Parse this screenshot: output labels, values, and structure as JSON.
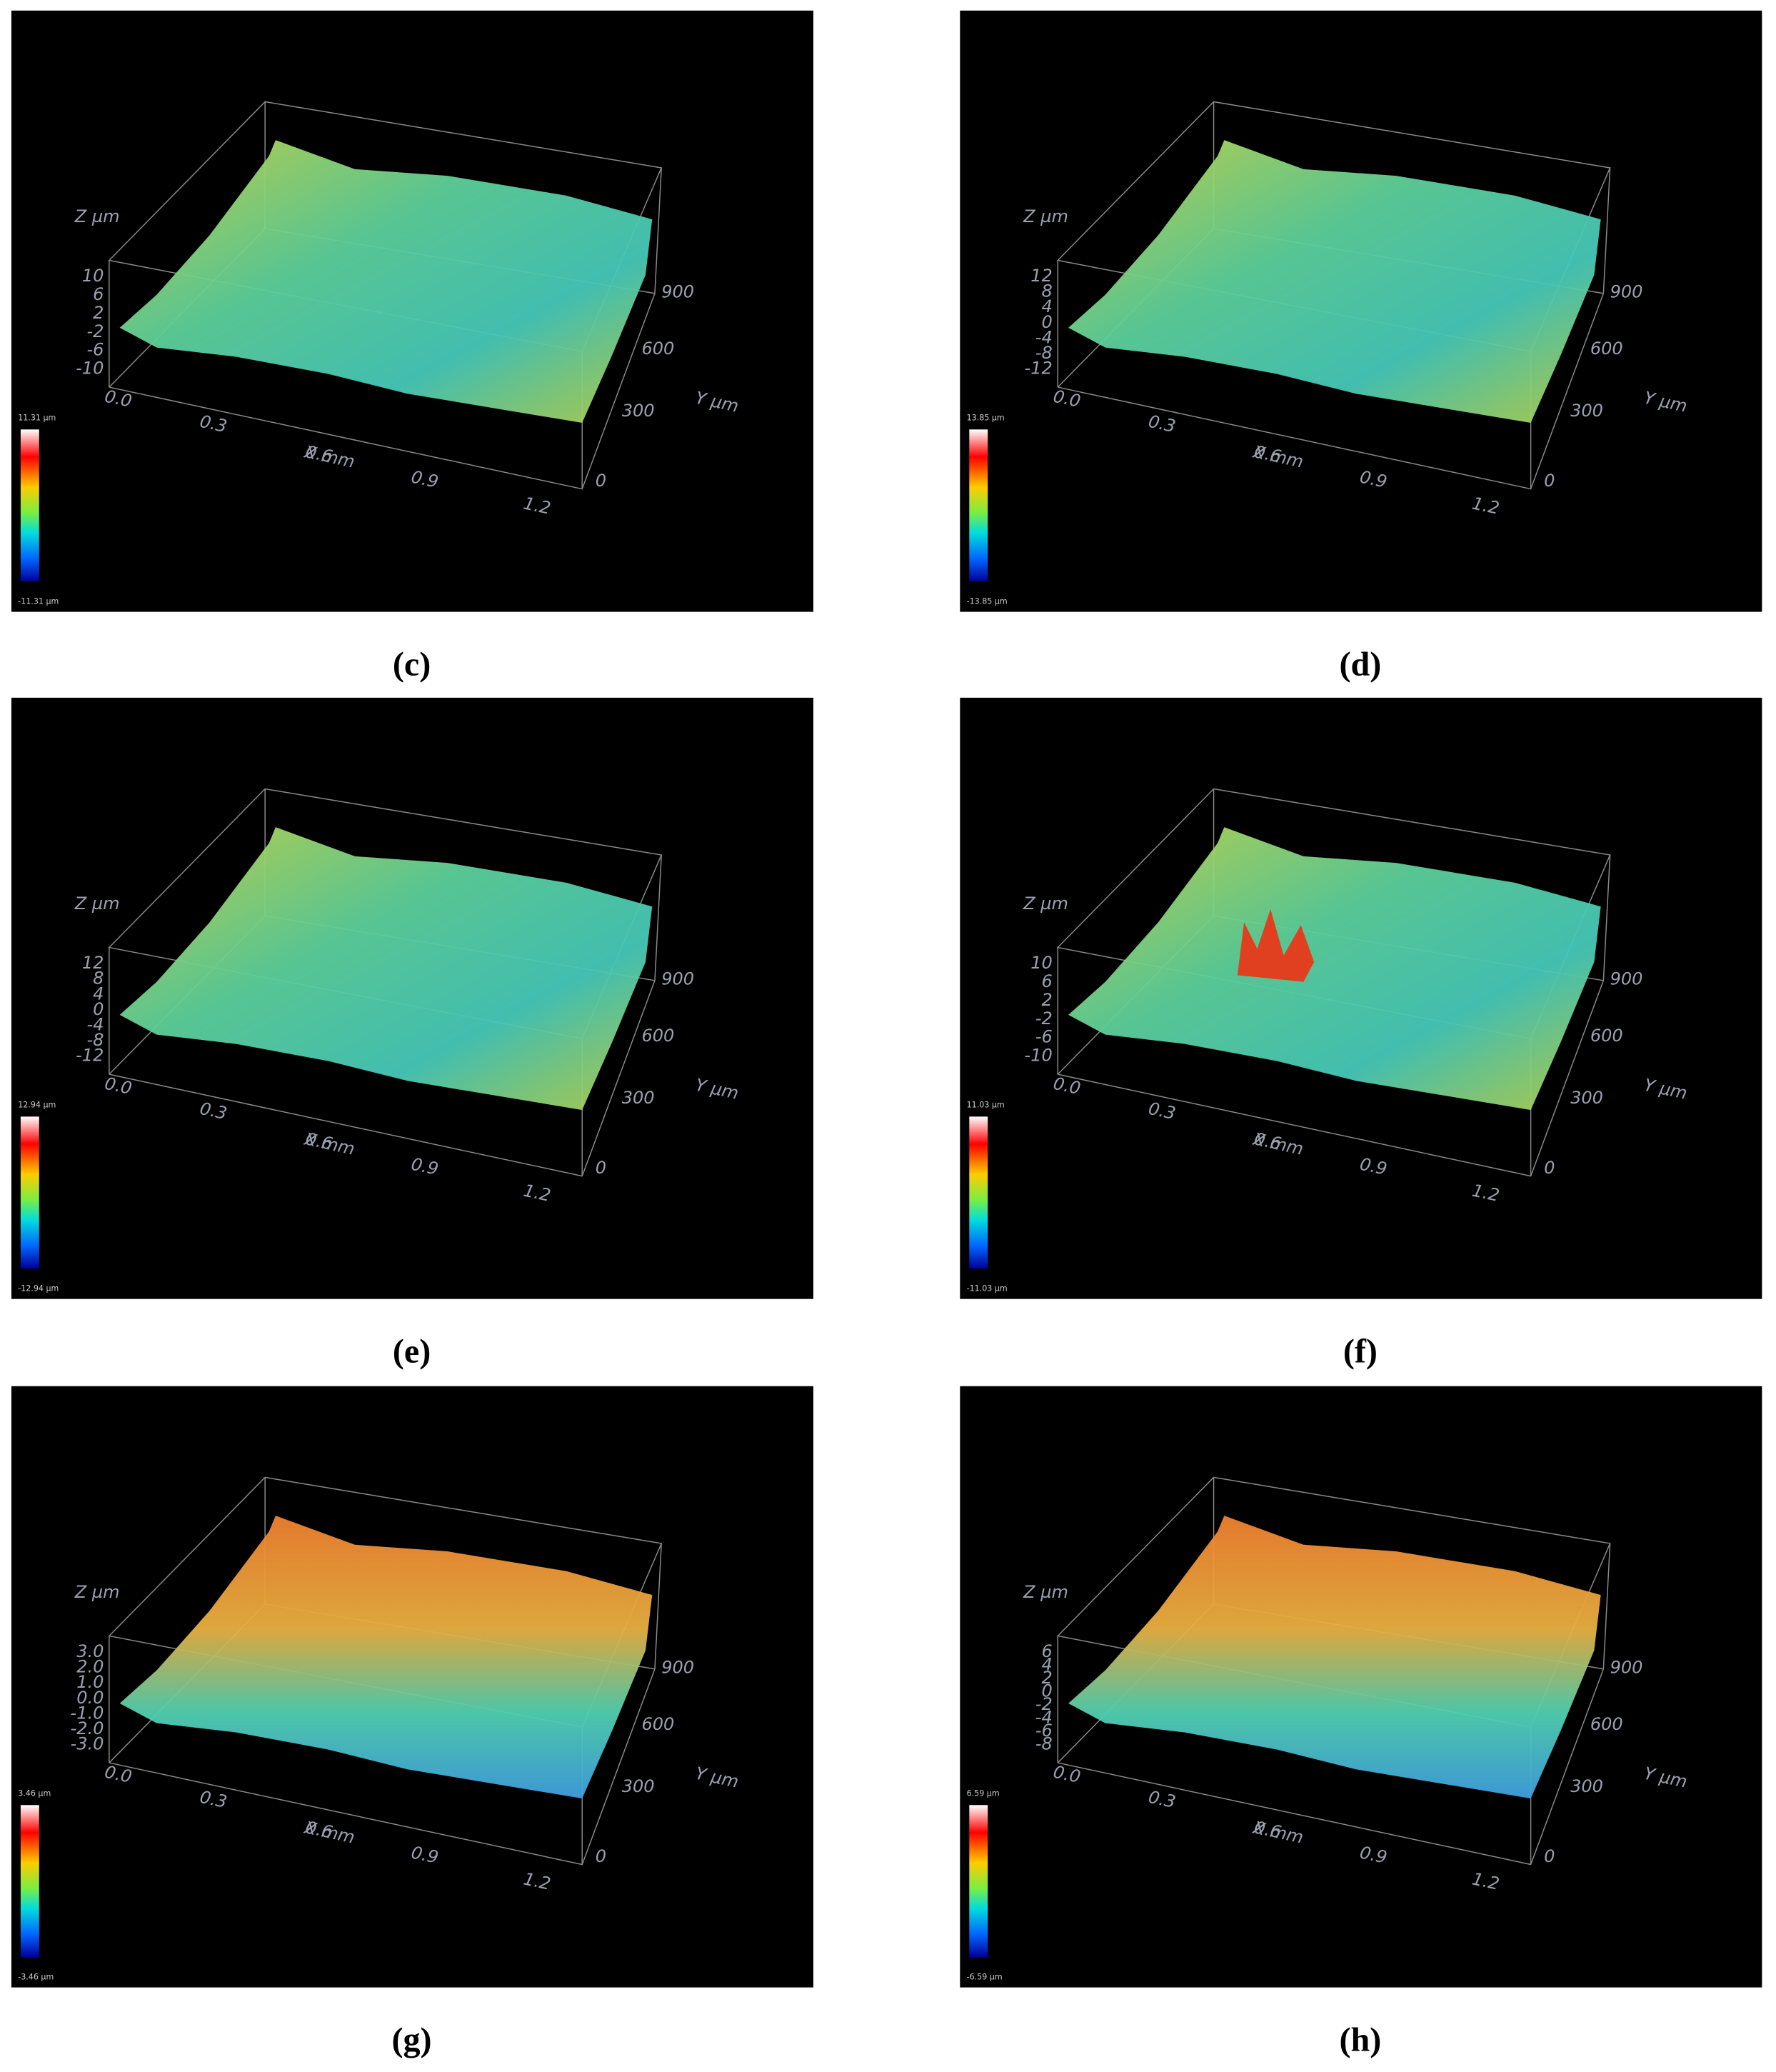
{
  "axes": {
    "z_label": "Z µm",
    "x_label": "X mm",
    "y_label": "Y µm",
    "x_ticks": [
      "0.0",
      "0.3",
      "0.6",
      "0.9",
      "1.2"
    ],
    "y_ticks": [
      "0",
      "300",
      "600",
      "900"
    ]
  },
  "panels": [
    {
      "caption": "(c)",
      "z_ticks": [
        "10",
        "6",
        "2",
        "-2",
        "-6",
        "-10"
      ],
      "colorbar_max": "11.31 µm",
      "colorbar_min": "-11.31 µm"
    },
    {
      "caption": "(d)",
      "z_ticks": [
        "12",
        "8",
        "4",
        "0",
        "-4",
        "-8",
        "-12"
      ],
      "colorbar_max": "13.85 µm",
      "colorbar_min": "-13.85 µm"
    },
    {
      "caption": "(e)",
      "z_ticks": [
        "12",
        "8",
        "4",
        "0",
        "-4",
        "-8",
        "-12"
      ],
      "colorbar_max": "12.94 µm",
      "colorbar_min": "-12.94 µm"
    },
    {
      "caption": "(f)",
      "z_ticks": [
        "10",
        "6",
        "2",
        "-2",
        "-6",
        "-10"
      ],
      "colorbar_max": "11.03 µm",
      "colorbar_min": "-11.03 µm"
    },
    {
      "caption": "(g)",
      "z_ticks": [
        "3.0",
        "2.0",
        "1.0",
        "0.0",
        "-1.0",
        "-2.0",
        "-3.0"
      ],
      "colorbar_max": "3.46 µm",
      "colorbar_min": "-3.46 µm"
    },
    {
      "caption": "(h)",
      "z_ticks": [
        "6",
        "4",
        "2",
        "0",
        "-2",
        "-4",
        "-6",
        "-8"
      ],
      "colorbar_max": "6.59 µm",
      "colorbar_min": "-6.59 µm"
    }
  ]
}
